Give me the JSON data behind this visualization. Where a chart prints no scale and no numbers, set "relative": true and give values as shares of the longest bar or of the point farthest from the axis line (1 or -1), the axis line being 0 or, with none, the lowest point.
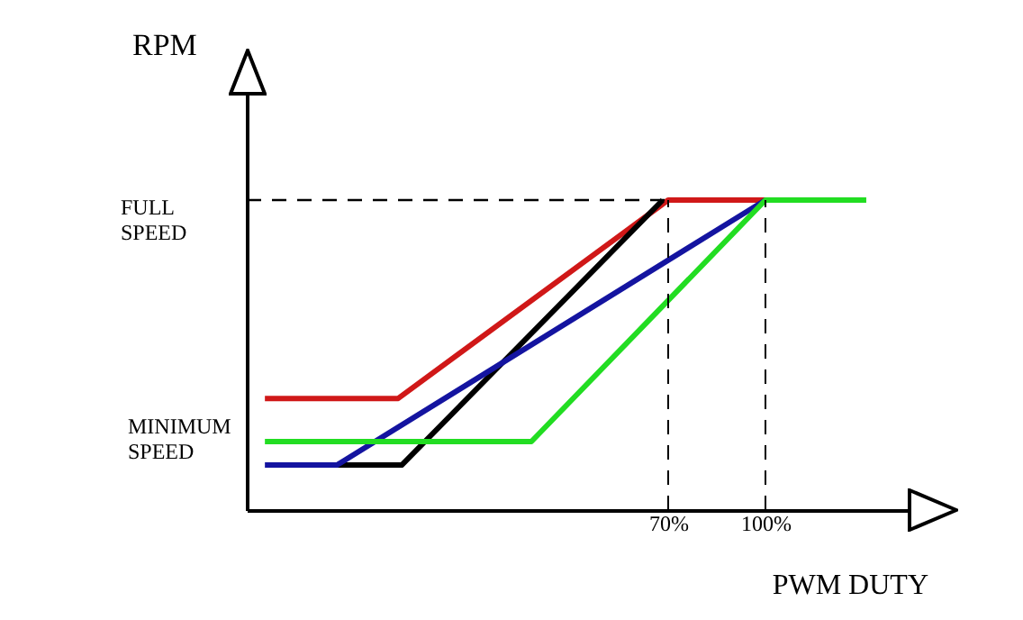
{
  "chart_data": {
    "type": "line",
    "relative": true,
    "xlabel": "PWM DUTY",
    "ylabel": "RPM",
    "xlim": [
      -60,
      150
    ],
    "xticks": [
      {
        "value": 70,
        "label": "70%"
      },
      {
        "value": 100,
        "label": "100%"
      }
    ],
    "series": [
      {
        "color": "#d01818",
        "x": [
          -54.4,
          -13.3,
          70,
          100
        ],
        "values": [
          0.36,
          0.36,
          1,
          1
        ]
      },
      {
        "color": "#000000",
        "x": [
          -32.2,
          -12.2,
          68.3
        ],
        "values": [
          0.145,
          0.145,
          1
        ]
      },
      {
        "color": "#1414a0",
        "x": [
          -54.4,
          -32.2,
          100
        ],
        "values": [
          0.145,
          0.145,
          1
        ]
      },
      {
        "color": "#22dd22",
        "x": [
          -54.4,
          27.8,
          100,
          131.1
        ],
        "values": [
          0.221,
          0.221,
          1,
          1
        ]
      }
    ],
    "ref_lines": [
      {
        "axis": "y",
        "value": 1,
        "label": "FULL SPEED",
        "line_style": "dashed"
      },
      {
        "axis": "x",
        "value": 70,
        "line_style": "dashed"
      },
      {
        "axis": "x",
        "value": 100,
        "line_style": "dashed"
      }
    ],
    "annotations": [
      "MINIMUM SPEED"
    ],
    "grid": false,
    "legend": false,
    "marker": "none",
    "line_style": "solid"
  }
}
